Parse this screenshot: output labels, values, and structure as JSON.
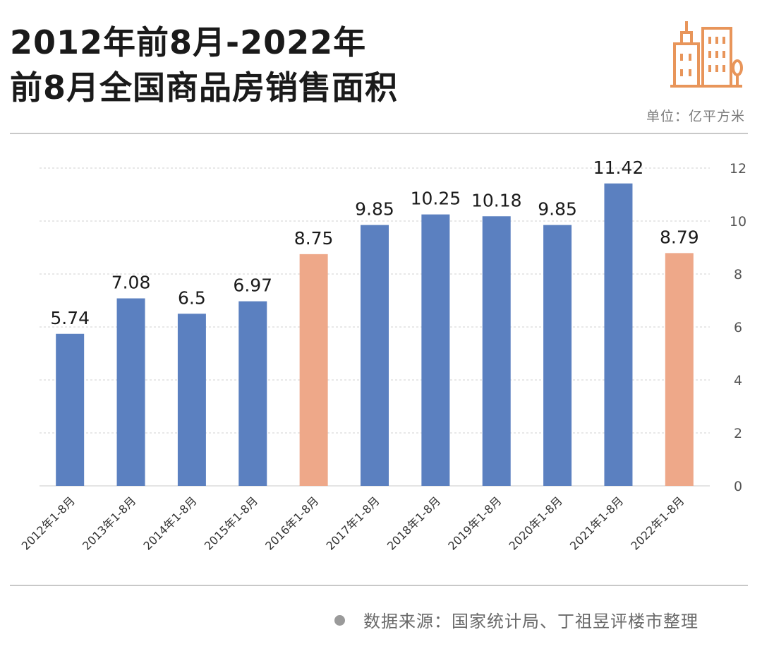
{
  "header": {
    "title_line1": "2012年前8月-2022年",
    "title_line2": "前8月全国商品房销售面积",
    "unit": "单位：亿平方米",
    "logo_icon": "buildings-icon"
  },
  "footer": {
    "source": "数据来源：国家统计局、丁祖昱评楼市整理"
  },
  "colors": {
    "bar_default": "#5b80c0",
    "bar_highlight": "#eea889",
    "logo": "#e8955a"
  },
  "chart_data": {
    "type": "bar",
    "categories": [
      "2012年1-8月",
      "2013年1-8月",
      "2014年1-8月",
      "2015年1-8月",
      "2016年1-8月",
      "2017年1-8月",
      "2018年1-8月",
      "2019年1-8月",
      "2020年1-8月",
      "2021年1-8月",
      "2022年1-8月"
    ],
    "values": [
      5.74,
      7.08,
      6.5,
      6.97,
      8.75,
      9.85,
      10.25,
      10.18,
      9.85,
      11.42,
      8.79
    ],
    "value_labels": [
      "5.74",
      "7.08",
      "6.5",
      "6.97",
      "8.75",
      "9.85",
      "10.25",
      "10.18",
      "9.85",
      "11.42",
      "8.79"
    ],
    "highlight": [
      false,
      false,
      false,
      false,
      true,
      false,
      false,
      false,
      false,
      false,
      true
    ],
    "y_ticks": [
      0,
      2,
      4,
      6,
      8,
      10,
      12
    ],
    "ylim": [
      0,
      12
    ],
    "y_axis_side": "right",
    "grid": true,
    "title": "",
    "xlabel": "",
    "ylabel": ""
  }
}
